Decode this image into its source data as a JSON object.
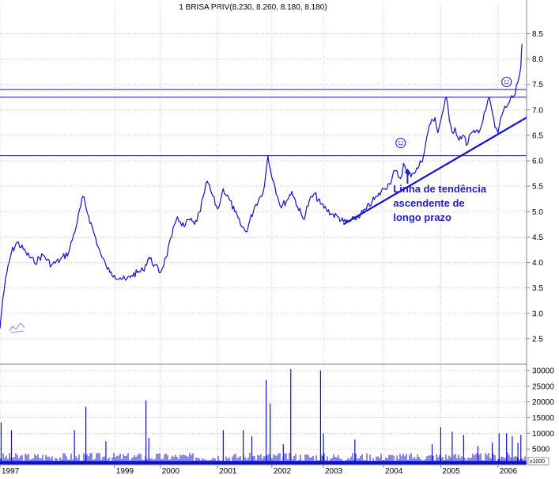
{
  "chart_data": {
    "type": "line",
    "title": "1 BRISA PRIV(8.230, 8.260, 8.180, 8.180)",
    "subtitle": "",
    "xlabel": "",
    "ylabel": "",
    "x_tick_labels": [
      "1997",
      "1999",
      "2000",
      "2001",
      "2002",
      "2003",
      "2004",
      "2005",
      "2006"
    ],
    "x_tick_positions": [
      1997.0,
      1999.0,
      1999.8,
      2000.8,
      2001.75,
      2002.65,
      2003.7,
      2004.7,
      2005.7
    ],
    "xlim": [
      1997.0,
      2006.2
    ],
    "price_ylim": [
      2.0,
      8.85
    ],
    "price_ticks": [
      "2.5",
      "3.0",
      "3.5",
      "4.0",
      "4.5",
      "5.0",
      "5.5",
      "6.0",
      "6.5",
      "7.0",
      "7.5",
      "8.0",
      "8.5"
    ],
    "price_tick_values": [
      2.5,
      3.0,
      3.5,
      4.0,
      4.5,
      5.0,
      5.5,
      6.0,
      6.5,
      7.0,
      7.5,
      8.0,
      8.5
    ],
    "volume_ylim": [
      0,
      32000
    ],
    "volume_ticks": [
      "5000",
      "10000",
      "15000",
      "20000",
      "25000",
      "30000"
    ],
    "volume_tick_values": [
      5000,
      10000,
      15000,
      20000,
      25000,
      30000
    ],
    "volume_scale_label": "x1000",
    "grid": true,
    "series": [
      {
        "color": "#1010d0",
        "x": [
          1997.0,
          1997.05,
          1997.12,
          1997.2,
          1997.3,
          1997.45,
          1997.6,
          1997.75,
          1997.9,
          1998.05,
          1998.2,
          1998.35,
          1998.45,
          1998.55,
          1998.65,
          1998.72,
          1998.78,
          1998.85,
          1998.92,
          1999.0,
          1999.1,
          1999.2,
          1999.3,
          1999.4,
          1999.5,
          1999.6,
          1999.7,
          1999.8,
          1999.9,
          2000.0,
          2000.05,
          2000.1,
          2000.15,
          2000.22,
          2000.3,
          2000.4,
          2000.5,
          2000.55,
          2000.62,
          2000.7,
          2000.8,
          2000.85,
          2000.9,
          2001.0,
          2001.1,
          2001.2,
          2001.3,
          2001.45,
          2001.55,
          2001.62,
          2001.68,
          2001.72,
          2001.78,
          2001.85,
          2001.9,
          2002.0,
          2002.1,
          2002.2,
          2002.3,
          2002.4,
          2002.5,
          2002.6,
          2002.7,
          2002.8,
          2002.9,
          2003.0,
          2003.1,
          2003.2,
          2003.3,
          2003.4,
          2003.5,
          2003.6,
          2003.7,
          2003.8,
          2003.9,
          2004.0,
          2004.05,
          2004.12,
          2004.2,
          2004.3,
          2004.4,
          2004.5,
          2004.6,
          2004.65,
          2004.72,
          2004.8,
          2004.85,
          2004.9,
          2004.95,
          2005.0,
          2005.1,
          2005.15,
          2005.2,
          2005.3,
          2005.4,
          2005.5,
          2005.55,
          2005.6,
          2005.65,
          2005.7,
          2005.75,
          2005.8,
          2005.9,
          2006.0,
          2006.05,
          2006.1,
          2006.12
        ],
        "y": [
          2.7,
          3.3,
          3.8,
          4.2,
          4.4,
          4.2,
          4.0,
          4.15,
          3.95,
          4.05,
          4.2,
          4.8,
          5.3,
          4.9,
          4.55,
          4.3,
          4.1,
          3.95,
          3.8,
          3.75,
          3.7,
          3.65,
          3.75,
          3.8,
          3.85,
          4.1,
          3.95,
          3.8,
          4.1,
          4.5,
          4.75,
          4.9,
          4.8,
          4.7,
          4.85,
          4.75,
          5.0,
          5.3,
          5.6,
          5.35,
          5.05,
          5.2,
          5.45,
          5.25,
          5.0,
          4.75,
          4.6,
          5.1,
          5.3,
          5.5,
          6.1,
          5.85,
          5.6,
          5.3,
          5.1,
          5.2,
          5.4,
          5.1,
          4.85,
          5.2,
          5.35,
          5.15,
          5.05,
          4.95,
          4.9,
          4.8,
          4.8,
          4.85,
          4.95,
          5.05,
          5.2,
          5.3,
          5.45,
          5.55,
          5.8,
          5.65,
          5.95,
          5.7,
          5.75,
          5.85,
          6.1,
          6.7,
          6.85,
          6.55,
          6.9,
          7.25,
          6.8,
          6.55,
          6.65,
          6.45,
          6.5,
          6.3,
          6.5,
          6.55,
          6.65,
          7.05,
          7.25,
          6.95,
          6.65,
          6.55,
          6.85,
          7.0,
          7.15,
          7.3,
          7.55,
          7.85,
          8.3
        ]
      }
    ],
    "volume": {
      "color": "#1010d0",
      "baseline": 1200,
      "x": [
        1997.02,
        1997.2,
        1998.3,
        1998.5,
        1998.85,
        1999.55,
        1999.6,
        2000.9,
        2001.25,
        2001.4,
        2001.65,
        2001.72,
        2001.95,
        2002.08,
        2002.6,
        2002.65,
        2003.2,
        2004.55,
        2004.7,
        2004.9,
        2005.1,
        2005.35,
        2005.6,
        2005.72,
        2005.85,
        2005.95,
        2006.05,
        2006.1
      ],
      "y": [
        13500,
        11000,
        11000,
        18500,
        7500,
        20500,
        8500,
        11000,
        11000,
        9000,
        27000,
        19500,
        6500,
        30500,
        30000,
        10000,
        8000,
        6500,
        12000,
        10500,
        9500,
        6000,
        7000,
        10000,
        10000,
        9000,
        7000,
        9500
      ]
    },
    "horizontal_lines": [
      {
        "y": 7.4,
        "color": "#1010d0"
      },
      {
        "y": 7.25,
        "color": "#1010d0"
      },
      {
        "y": 6.1,
        "color": "#1010d0"
      }
    ],
    "trendline": {
      "x0": 2003.0,
      "y0": 4.75,
      "x1": 2006.2,
      "y1": 6.85,
      "color": "#1010d0"
    },
    "annotations": [
      {
        "text": "Linha de tendência",
        "x": 2003.87,
        "y": 5.38
      },
      {
        "text": "ascendente de",
        "x": 2003.87,
        "y": 5.1
      },
      {
        "text": "longo prazo",
        "x": 2003.87,
        "y": 4.82
      }
    ],
    "arrow": {
      "x": 2004.12,
      "y_from": 5.55,
      "y_to": 5.85
    },
    "smiley_markers": [
      {
        "x": 2004.0,
        "y": 6.35
      },
      {
        "x": 2005.85,
        "y": 7.55
      }
    ],
    "colors": {
      "line": "#1010d0",
      "text": "#000000",
      "annotation": "#2020c0",
      "grid": "#c8c8c8",
      "axis": "#808080"
    }
  }
}
